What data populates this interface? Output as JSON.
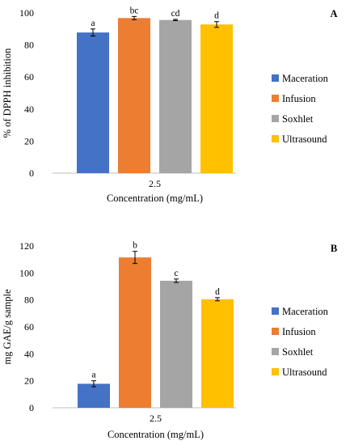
{
  "chart_data": [
    {
      "type": "bar",
      "panel_label": "A",
      "xlabel": "Concentration (mg/mL)",
      "ylabel": "% of DPPH inhibition",
      "categories": [
        "2.5"
      ],
      "ylim": [
        0,
        100
      ],
      "yticks": [
        0,
        20,
        40,
        60,
        80,
        100
      ],
      "legend_position": "right",
      "grid": false,
      "series": [
        {
          "name": "Maceration",
          "color": "#4472C4",
          "values": [
            87.8
          ],
          "error": [
            2.2
          ],
          "label": "a"
        },
        {
          "name": "Infusion",
          "color": "#ED7D31",
          "values": [
            96.8
          ],
          "error": [
            1.0
          ],
          "label": "bc"
        },
        {
          "name": "Soxhlet",
          "color": "#A5A5A5",
          "values": [
            95.6
          ],
          "error": [
            0.4
          ],
          "label": "cd"
        },
        {
          "name": "Ultrasound",
          "color": "#FFC000",
          "values": [
            92.8
          ],
          "error": [
            1.8
          ],
          "label": "d"
        }
      ]
    },
    {
      "type": "bar",
      "panel_label": "B",
      "xlabel": "Concentration (mg/mL)",
      "ylabel": "mg GAE/g  sample",
      "categories": [
        "2.5"
      ],
      "ylim": [
        0,
        120
      ],
      "yticks": [
        0,
        20,
        40,
        60,
        80,
        100,
        120
      ],
      "legend_position": "right",
      "grid": false,
      "series": [
        {
          "name": "Maceration",
          "color": "#4472C4",
          "values": [
            17.8
          ],
          "error": [
            2.2
          ],
          "label": "a"
        },
        {
          "name": "Infusion",
          "color": "#ED7D31",
          "values": [
            111.5
          ],
          "error": [
            4.5
          ],
          "label": "b"
        },
        {
          "name": "Soxhlet",
          "color": "#A5A5A5",
          "values": [
            94.2
          ],
          "error": [
            1.3
          ],
          "label": "c"
        },
        {
          "name": "Ultrasound",
          "color": "#FFC000",
          "values": [
            80.5
          ],
          "error": [
            1.2
          ],
          "label": "d"
        }
      ]
    }
  ]
}
